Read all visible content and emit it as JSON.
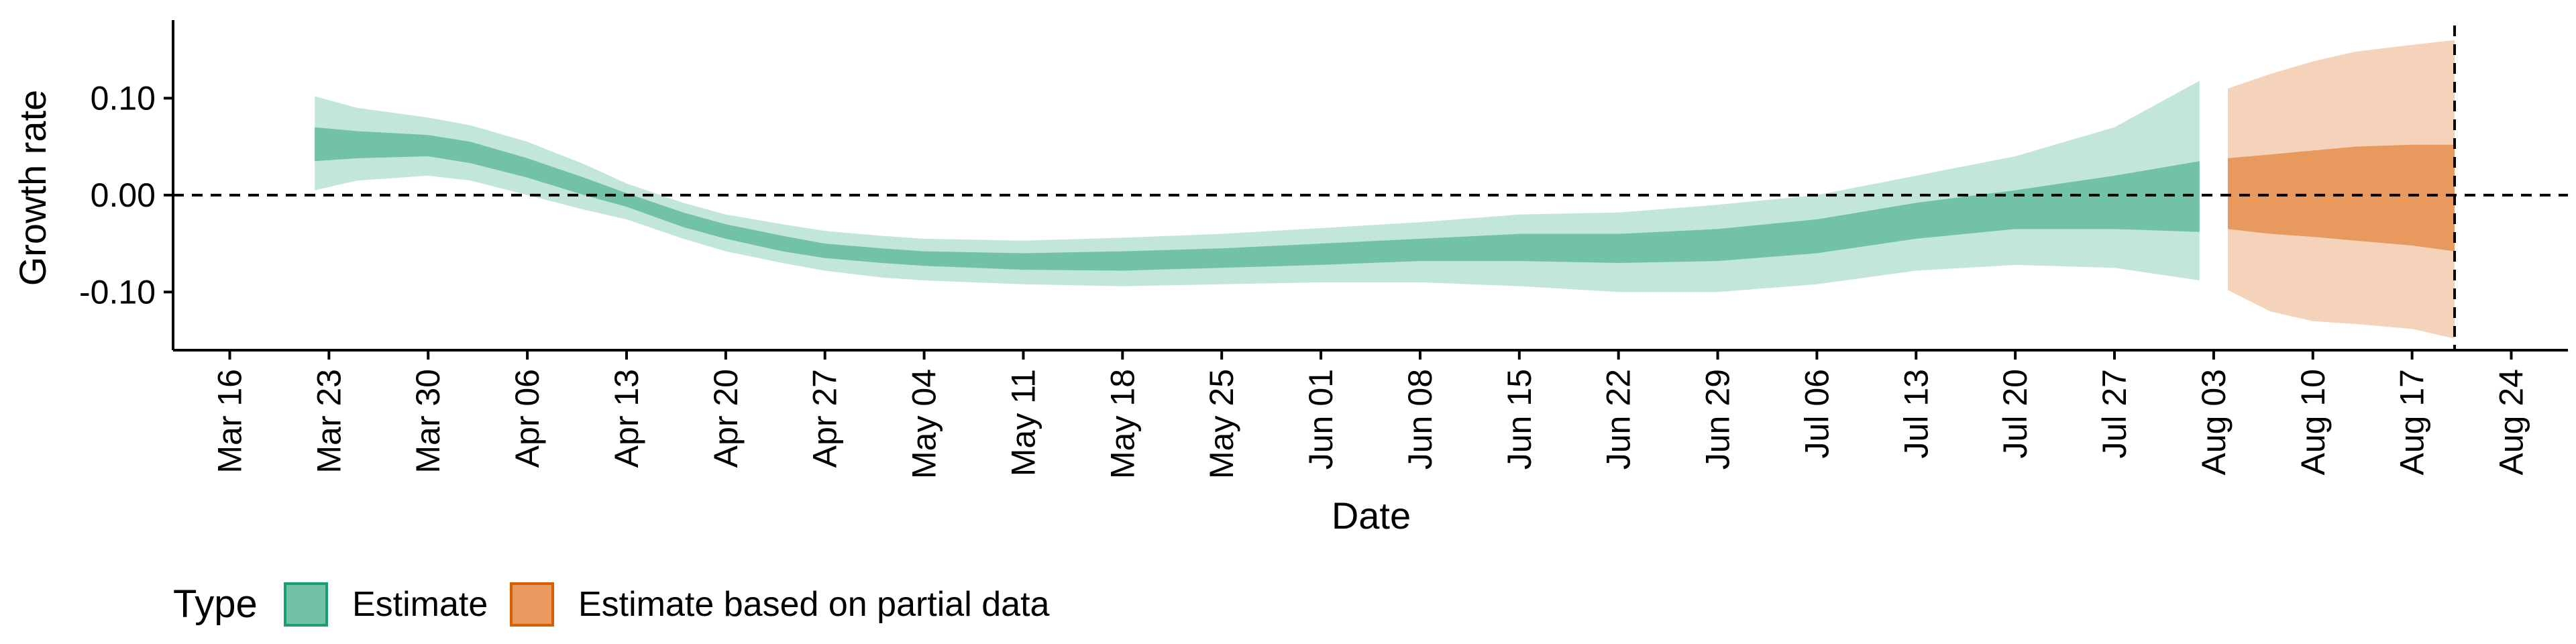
{
  "chart_data": {
    "type": "area",
    "xlabel": "Date",
    "ylabel": "Growth rate",
    "xlim": [
      "2020-03-12",
      "2020-08-28"
    ],
    "ylim": [
      -0.16,
      0.175
    ],
    "y_ticks": [
      {
        "value": 0.1,
        "label": "0.10"
      },
      {
        "value": 0.0,
        "label": "0.00"
      },
      {
        "value": -0.1,
        "label": "-0.10"
      }
    ],
    "x_ticks": [
      {
        "date": "2020-03-16",
        "label": "Mar 16"
      },
      {
        "date": "2020-03-23",
        "label": "Mar 23"
      },
      {
        "date": "2020-03-30",
        "label": "Mar 30"
      },
      {
        "date": "2020-04-06",
        "label": "Apr 06"
      },
      {
        "date": "2020-04-13",
        "label": "Apr 13"
      },
      {
        "date": "2020-04-20",
        "label": "Apr 20"
      },
      {
        "date": "2020-04-27",
        "label": "Apr 27"
      },
      {
        "date": "2020-05-04",
        "label": "May 04"
      },
      {
        "date": "2020-05-11",
        "label": "May 11"
      },
      {
        "date": "2020-05-18",
        "label": "May 18"
      },
      {
        "date": "2020-05-25",
        "label": "May 25"
      },
      {
        "date": "2020-06-01",
        "label": "Jun 01"
      },
      {
        "date": "2020-06-08",
        "label": "Jun 08"
      },
      {
        "date": "2020-06-15",
        "label": "Jun 15"
      },
      {
        "date": "2020-06-22",
        "label": "Jun 22"
      },
      {
        "date": "2020-06-29",
        "label": "Jun 29"
      },
      {
        "date": "2020-07-06",
        "label": "Jul 06"
      },
      {
        "date": "2020-07-13",
        "label": "Jul 13"
      },
      {
        "date": "2020-07-20",
        "label": "Jul 20"
      },
      {
        "date": "2020-07-27",
        "label": "Jul 27"
      },
      {
        "date": "2020-08-03",
        "label": "Aug 03"
      },
      {
        "date": "2020-08-10",
        "label": "Aug 10"
      },
      {
        "date": "2020-08-17",
        "label": "Aug 17"
      },
      {
        "date": "2020-08-24",
        "label": "Aug 24"
      }
    ],
    "reference_lines": [
      {
        "orientation": "horizontal",
        "y": 0.0,
        "style": "dashed"
      },
      {
        "orientation": "vertical",
        "x": "2020-08-20",
        "style": "dashed"
      }
    ],
    "legend": {
      "title": "Type",
      "position": "bottom-left",
      "items": [
        {
          "label": "Estimate",
          "series": "estimate"
        },
        {
          "label": "Estimate based on partial data",
          "series": "partial"
        }
      ]
    },
    "series": [
      {
        "id": "estimate",
        "name": "Estimate",
        "color_outer": "#c3e6da",
        "color_inner": "#72c2a7",
        "points": [
          {
            "x": "2020-03-22",
            "lo90": 0.005,
            "lo50": 0.035,
            "hi50": 0.07,
            "hi90": 0.102
          },
          {
            "x": "2020-03-25",
            "lo90": 0.015,
            "lo50": 0.038,
            "hi50": 0.066,
            "hi90": 0.09
          },
          {
            "x": "2020-03-30",
            "lo90": 0.02,
            "lo50": 0.04,
            "hi50": 0.062,
            "hi90": 0.08
          },
          {
            "x": "2020-04-02",
            "lo90": 0.015,
            "lo50": 0.033,
            "hi50": 0.055,
            "hi90": 0.072
          },
          {
            "x": "2020-04-06",
            "lo90": 0.0,
            "lo50": 0.018,
            "hi50": 0.038,
            "hi90": 0.055
          },
          {
            "x": "2020-04-10",
            "lo90": -0.015,
            "lo50": 0.0,
            "hi50": 0.018,
            "hi90": 0.032
          },
          {
            "x": "2020-04-13",
            "lo90": -0.025,
            "lo50": -0.012,
            "hi50": 0.002,
            "hi90": 0.012
          },
          {
            "x": "2020-04-17",
            "lo90": -0.045,
            "lo50": -0.033,
            "hi50": -0.018,
            "hi90": -0.008
          },
          {
            "x": "2020-04-20",
            "lo90": -0.058,
            "lo50": -0.045,
            "hi50": -0.03,
            "hi90": -0.02
          },
          {
            "x": "2020-04-24",
            "lo90": -0.07,
            "lo50": -0.058,
            "hi50": -0.042,
            "hi90": -0.03
          },
          {
            "x": "2020-04-27",
            "lo90": -0.078,
            "lo50": -0.065,
            "hi50": -0.05,
            "hi90": -0.037
          },
          {
            "x": "2020-05-01",
            "lo90": -0.085,
            "lo50": -0.07,
            "hi50": -0.055,
            "hi90": -0.042
          },
          {
            "x": "2020-05-04",
            "lo90": -0.088,
            "lo50": -0.073,
            "hi50": -0.058,
            "hi90": -0.045
          },
          {
            "x": "2020-05-11",
            "lo90": -0.092,
            "lo50": -0.077,
            "hi50": -0.06,
            "hi90": -0.047
          },
          {
            "x": "2020-05-18",
            "lo90": -0.094,
            "lo50": -0.078,
            "hi50": -0.058,
            "hi90": -0.044
          },
          {
            "x": "2020-05-25",
            "lo90": -0.092,
            "lo50": -0.075,
            "hi50": -0.055,
            "hi90": -0.04
          },
          {
            "x": "2020-06-01",
            "lo90": -0.09,
            "lo50": -0.072,
            "hi50": -0.05,
            "hi90": -0.034
          },
          {
            "x": "2020-06-08",
            "lo90": -0.09,
            "lo50": -0.068,
            "hi50": -0.045,
            "hi90": -0.028
          },
          {
            "x": "2020-06-15",
            "lo90": -0.094,
            "lo50": -0.068,
            "hi50": -0.04,
            "hi90": -0.02
          },
          {
            "x": "2020-06-22",
            "lo90": -0.1,
            "lo50": -0.07,
            "hi50": -0.04,
            "hi90": -0.018
          },
          {
            "x": "2020-06-29",
            "lo90": -0.1,
            "lo50": -0.068,
            "hi50": -0.035,
            "hi90": -0.01
          },
          {
            "x": "2020-07-06",
            "lo90": -0.092,
            "lo50": -0.06,
            "hi50": -0.025,
            "hi90": 0.0
          },
          {
            "x": "2020-07-13",
            "lo90": -0.078,
            "lo50": -0.045,
            "hi50": -0.008,
            "hi90": 0.02
          },
          {
            "x": "2020-07-20",
            "lo90": -0.072,
            "lo50": -0.035,
            "hi50": 0.005,
            "hi90": 0.04
          },
          {
            "x": "2020-07-27",
            "lo90": -0.075,
            "lo50": -0.035,
            "hi50": 0.02,
            "hi90": 0.07
          },
          {
            "x": "2020-08-02",
            "lo90": -0.088,
            "lo50": -0.038,
            "hi50": 0.035,
            "hi90": 0.118
          }
        ]
      },
      {
        "id": "partial",
        "name": "Estimate based on partial data",
        "color_outer": "#f5d3ba",
        "color_inner": "#e89a5e",
        "points": [
          {
            "x": "2020-08-04",
            "lo90": -0.098,
            "lo50": -0.035,
            "hi50": 0.038,
            "hi90": 0.11
          },
          {
            "x": "2020-08-07",
            "lo90": -0.12,
            "lo50": -0.04,
            "hi50": 0.042,
            "hi90": 0.125
          },
          {
            "x": "2020-08-10",
            "lo90": -0.13,
            "lo50": -0.043,
            "hi50": 0.046,
            "hi90": 0.138
          },
          {
            "x": "2020-08-13",
            "lo90": -0.133,
            "lo50": -0.047,
            "hi50": 0.05,
            "hi90": 0.148
          },
          {
            "x": "2020-08-17",
            "lo90": -0.138,
            "lo50": -0.052,
            "hi50": 0.052,
            "hi90": 0.155
          },
          {
            "x": "2020-08-20",
            "lo90": -0.148,
            "lo50": -0.058,
            "hi50": 0.052,
            "hi90": 0.16
          }
        ]
      }
    ]
  }
}
